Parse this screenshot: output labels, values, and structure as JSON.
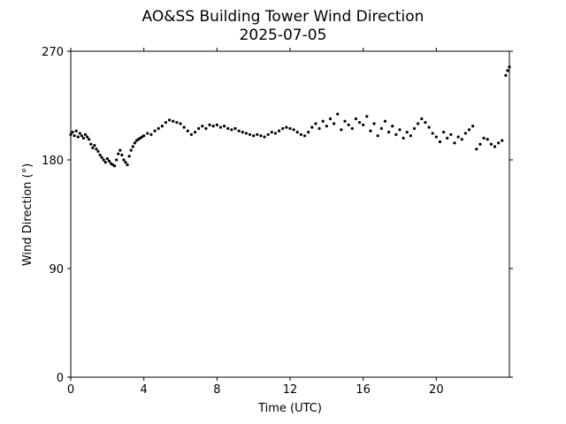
{
  "chart_data": {
    "type": "scatter",
    "title": "AO&SS Building Tower Wind Direction",
    "subtitle": "2025-07-05",
    "xlabel": "Time (UTC)",
    "ylabel": "Wind Direction (°)",
    "xlim": [
      0,
      24
    ],
    "ylim": [
      0,
      270
    ],
    "xticks": [
      0,
      4,
      8,
      12,
      16,
      20
    ],
    "yticks": [
      0,
      90,
      180,
      270
    ],
    "grid": false,
    "marker_color": "#000000",
    "series": [
      {
        "points": [
          [
            0.0,
            201
          ],
          [
            0.1,
            203
          ],
          [
            0.2,
            200
          ],
          [
            0.3,
            204
          ],
          [
            0.4,
            199
          ],
          [
            0.5,
            202
          ],
          [
            0.6,
            200
          ],
          [
            0.7,
            198
          ],
          [
            0.8,
            201
          ],
          [
            0.9,
            199
          ],
          [
            1.0,
            197
          ],
          [
            1.1,
            193
          ],
          [
            1.2,
            190
          ],
          [
            1.3,
            192
          ],
          [
            1.4,
            189
          ],
          [
            1.5,
            187
          ],
          [
            1.6,
            184
          ],
          [
            1.7,
            182
          ],
          [
            1.8,
            180
          ],
          [
            1.9,
            178
          ],
          [
            2.0,
            181
          ],
          [
            2.1,
            179
          ],
          [
            2.2,
            177
          ],
          [
            2.3,
            176
          ],
          [
            2.4,
            175
          ],
          [
            2.5,
            180
          ],
          [
            2.6,
            185
          ],
          [
            2.7,
            188
          ],
          [
            2.8,
            184
          ],
          [
            2.9,
            180
          ],
          [
            3.0,
            178
          ],
          [
            3.1,
            176
          ],
          [
            3.2,
            183
          ],
          [
            3.3,
            188
          ],
          [
            3.4,
            191
          ],
          [
            3.5,
            194
          ],
          [
            3.6,
            196
          ],
          [
            3.7,
            197
          ],
          [
            3.8,
            198
          ],
          [
            3.9,
            199
          ],
          [
            4.0,
            200
          ],
          [
            4.2,
            202
          ],
          [
            4.4,
            201
          ],
          [
            4.6,
            204
          ],
          [
            4.8,
            206
          ],
          [
            5.0,
            208
          ],
          [
            5.2,
            211
          ],
          [
            5.4,
            213
          ],
          [
            5.6,
            212
          ],
          [
            5.8,
            211
          ],
          [
            6.0,
            210
          ],
          [
            6.2,
            207
          ],
          [
            6.4,
            204
          ],
          [
            6.6,
            201
          ],
          [
            6.8,
            203
          ],
          [
            7.0,
            206
          ],
          [
            7.2,
            208
          ],
          [
            7.4,
            206
          ],
          [
            7.6,
            209
          ],
          [
            7.8,
            208
          ],
          [
            8.0,
            209
          ],
          [
            8.2,
            207
          ],
          [
            8.4,
            208
          ],
          [
            8.6,
            206
          ],
          [
            8.8,
            205
          ],
          [
            9.0,
            206
          ],
          [
            9.2,
            204
          ],
          [
            9.4,
            203
          ],
          [
            9.6,
            202
          ],
          [
            9.8,
            201
          ],
          [
            10.0,
            200
          ],
          [
            10.2,
            201
          ],
          [
            10.4,
            200
          ],
          [
            10.6,
            199
          ],
          [
            10.8,
            201
          ],
          [
            11.0,
            203
          ],
          [
            11.2,
            202
          ],
          [
            11.4,
            204
          ],
          [
            11.6,
            206
          ],
          [
            11.8,
            207
          ],
          [
            12.0,
            206
          ],
          [
            12.2,
            205
          ],
          [
            12.4,
            203
          ],
          [
            12.6,
            201
          ],
          [
            12.8,
            200
          ],
          [
            13.0,
            203
          ],
          [
            13.2,
            207
          ],
          [
            13.4,
            210
          ],
          [
            13.6,
            206
          ],
          [
            13.8,
            212
          ],
          [
            14.0,
            208
          ],
          [
            14.2,
            214
          ],
          [
            14.4,
            210
          ],
          [
            14.6,
            218
          ],
          [
            14.8,
            205
          ],
          [
            15.0,
            212
          ],
          [
            15.2,
            209
          ],
          [
            15.4,
            206
          ],
          [
            15.6,
            214
          ],
          [
            15.8,
            211
          ],
          [
            16.0,
            209
          ],
          [
            16.2,
            216
          ],
          [
            16.4,
            204
          ],
          [
            16.6,
            210
          ],
          [
            16.8,
            200
          ],
          [
            17.0,
            206
          ],
          [
            17.2,
            212
          ],
          [
            17.4,
            203
          ],
          [
            17.6,
            208
          ],
          [
            17.8,
            201
          ],
          [
            18.0,
            205
          ],
          [
            18.2,
            198
          ],
          [
            18.4,
            203
          ],
          [
            18.6,
            200
          ],
          [
            18.8,
            206
          ],
          [
            19.0,
            210
          ],
          [
            19.2,
            214
          ],
          [
            19.4,
            211
          ],
          [
            19.6,
            207
          ],
          [
            19.8,
            202
          ],
          [
            20.0,
            199
          ],
          [
            20.2,
            195
          ],
          [
            20.4,
            203
          ],
          [
            20.6,
            198
          ],
          [
            20.8,
            201
          ],
          [
            21.0,
            194
          ],
          [
            21.2,
            199
          ],
          [
            21.4,
            197
          ],
          [
            21.6,
            202
          ],
          [
            21.8,
            205
          ],
          [
            22.0,
            208
          ],
          [
            22.2,
            189
          ],
          [
            22.4,
            193
          ],
          [
            22.6,
            198
          ],
          [
            22.8,
            197
          ],
          [
            23.0,
            193
          ],
          [
            23.2,
            191
          ],
          [
            23.4,
            194
          ],
          [
            23.6,
            196
          ],
          [
            23.8,
            250
          ],
          [
            23.9,
            254
          ],
          [
            24.0,
            257
          ]
        ]
      }
    ]
  }
}
